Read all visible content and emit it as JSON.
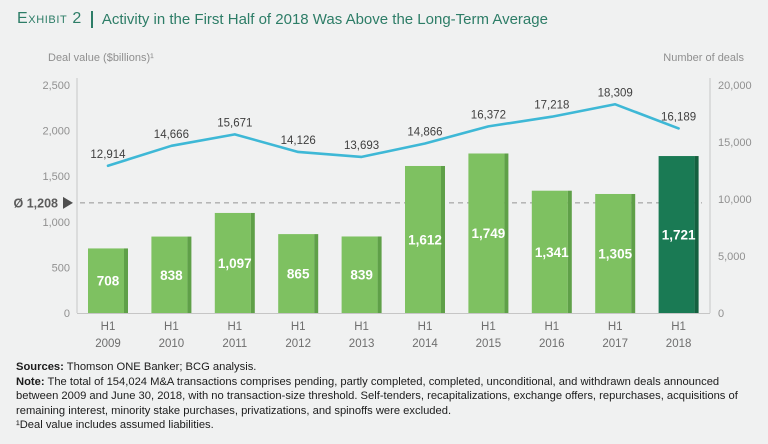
{
  "title": {
    "exhibit_label": "Exhibit 2",
    "text": "Activity in the First Half of 2018 Was Above the Long-Term Average"
  },
  "chart_data": {
    "type": "bar+line combo",
    "title": "Activity in the First Half of 2018 Was Above the Long-Term Average",
    "categories": [
      {
        "top": "H1",
        "bottom": "2009"
      },
      {
        "top": "H1",
        "bottom": "2010"
      },
      {
        "top": "H1",
        "bottom": "2011"
      },
      {
        "top": "H1",
        "bottom": "2012"
      },
      {
        "top": "H1",
        "bottom": "2013"
      },
      {
        "top": "H1",
        "bottom": "2014"
      },
      {
        "top": "H1",
        "bottom": "2015"
      },
      {
        "top": "H1",
        "bottom": "2016"
      },
      {
        "top": "H1",
        "bottom": "2017"
      },
      {
        "top": "H1",
        "bottom": "2018"
      }
    ],
    "series": [
      {
        "name": "Deal value ($billions)",
        "type": "bar",
        "axis": "left",
        "values": [
          708,
          838,
          1097,
          865,
          839,
          1612,
          1749,
          1341,
          1305,
          1721
        ],
        "labels": [
          "708",
          "838",
          "1,097",
          "865",
          "839",
          "1,612",
          "1,749",
          "1,341",
          "1,305",
          "1,721"
        ],
        "highlight_index": 9
      },
      {
        "name": "Number of deals",
        "type": "line",
        "axis": "right",
        "values": [
          12914,
          14666,
          15671,
          14126,
          13693,
          14866,
          16372,
          17218,
          18309,
          16189
        ],
        "labels": [
          "12,914",
          "14,666",
          "15,671",
          "14,126",
          "13,693",
          "14,866",
          "16,372",
          "17,218",
          "18,309",
          "16,189"
        ]
      }
    ],
    "average_line": {
      "axis": "left",
      "value": 1208,
      "label": "Ø 1,208"
    },
    "left_axis": {
      "title": "Deal value ($billions)¹",
      "min": 0,
      "max": 2500,
      "ticks": [
        {
          "v": 2500,
          "label": "2,500"
        },
        {
          "v": 2000,
          "label": "2,000"
        },
        {
          "v": 1500,
          "label": "1,500"
        },
        {
          "v": 1000,
          "label": "1,000"
        },
        {
          "v": 500,
          "label": "500"
        },
        {
          "v": 0,
          "label": "0"
        }
      ]
    },
    "right_axis": {
      "title": "Number of deals",
      "min": 0,
      "max": 20000,
      "ticks": [
        {
          "v": 20000,
          "label": "20,000"
        },
        {
          "v": 15000,
          "label": "15,000"
        },
        {
          "v": 10000,
          "label": "10,000"
        },
        {
          "v": 5000,
          "label": "5,000"
        },
        {
          "v": 0,
          "label": "0"
        }
      ]
    },
    "legend_position": "none",
    "grid": "off",
    "colors": {
      "bar": "#7ec161",
      "bar_side": "#5fa048",
      "bar_highlight": "#1a7a54",
      "bar_highlight_side": "#14603f",
      "line": "#3eb8d6",
      "average_dash": "#adadad",
      "axis": "#c6c6c6",
      "title_green": "#2d7d67"
    }
  },
  "footer": {
    "sources_label": "Sources:",
    "sources_text": " Thomson ONE Banker; BCG analysis.",
    "note_label": "Note:",
    "note_text": " The total of 154,024 M&A transactions comprises pending, partly completed, completed, unconditional, and withdrawn deals announced between 2009 and June 30, 2018, with no transaction-size threshold. Self-tenders, recapitalizations, exchange offers, repurchases, acquisitions of remaining interest, minority stake purchases, privatizations, and spinoffs were excluded.",
    "footnote_text": "¹Deal value includes assumed liabilities."
  }
}
